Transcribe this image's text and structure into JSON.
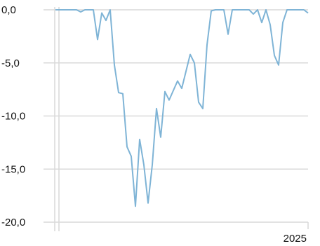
{
  "chart_data": {
    "type": "line",
    "title": "",
    "xlabel": "",
    "ylabel": "",
    "ylim": [
      -20,
      0
    ],
    "yticks": [
      {
        "value": 0,
        "label": "0,0"
      },
      {
        "value": -5,
        "label": "-5,0"
      },
      {
        "value": -10,
        "label": "-10,0"
      },
      {
        "value": -15,
        "label": "-15,0"
      },
      {
        "value": -20,
        "label": "-20,0"
      }
    ],
    "xticks": [
      {
        "index": 60,
        "label": "2025"
      }
    ],
    "grid": true,
    "line_color": "#7fb4d6",
    "series": [
      {
        "values": [
          0,
          0,
          0,
          0,
          0,
          0,
          -0.2,
          0,
          0,
          0,
          -2.8,
          -0.3,
          -1.0,
          0,
          -5.2,
          -7.8,
          -7.9,
          -12.9,
          -13.8,
          -18.5,
          -12.2,
          -14.6,
          -18.2,
          -14.6,
          -9.3,
          -12.0,
          -7.7,
          -8.5,
          -7.6,
          -6.7,
          -7.4,
          -5.8,
          -4.2,
          -5.0,
          -8.7,
          -9.3,
          -3.3,
          -0.1,
          0,
          0,
          0,
          -2.3,
          0,
          0,
          0,
          0,
          0,
          -0.4,
          0,
          -1.2,
          0,
          -1.4,
          -4.3,
          -5.2,
          -1.2,
          0,
          0,
          0,
          0,
          0,
          -0.3
        ]
      }
    ]
  }
}
